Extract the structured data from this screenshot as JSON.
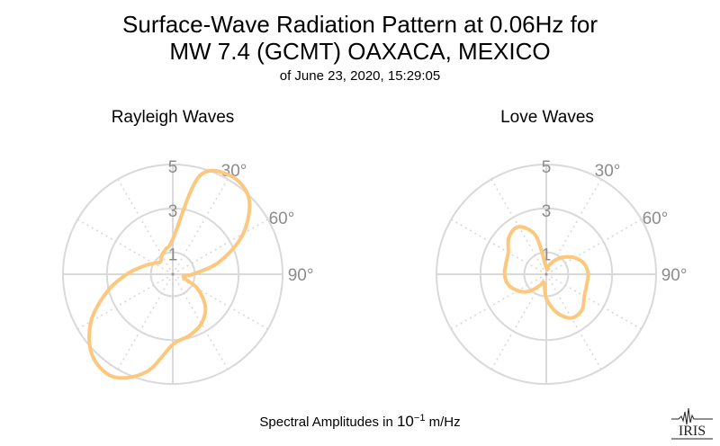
{
  "title": {
    "line1": "Surface-Wave Radiation Pattern at 0.06Hz for",
    "line2": "MW 7.4 (GCMT) OAXACA, MEXICO",
    "line3": "of June 23, 2020, 15:29:05"
  },
  "footer": {
    "prefix": "Spectral Amplitudes in",
    "base": "10",
    "exponent": "−1",
    "unit": "m/Hz"
  },
  "logo_text": "IRIS",
  "colors": {
    "curve": "#fdc77d",
    "grid": "#d9d9d9",
    "tick_label": "#8c8c8c"
  },
  "chart_data": [
    {
      "type": "polar-line",
      "title": "Rayleigh Waves",
      "radial_ticks": [
        "1",
        "3",
        "5"
      ],
      "radial_range": [
        0,
        5
      ],
      "angle_labels": [
        "30°",
        "60°",
        "90°"
      ],
      "angle_direction": "clockwise from north",
      "series": [
        {
          "azimuth_deg": [
            0,
            15,
            30,
            45,
            60,
            75,
            90,
            105,
            120,
            135,
            150,
            165,
            180,
            195,
            210,
            225,
            240,
            255,
            270,
            285,
            300,
            315,
            330,
            345
          ],
          "amplitude": [
            1.6,
            4.6,
            5.2,
            4.9,
            3.7,
            2.2,
            0.9,
            0.5,
            1.3,
            2.1,
            2.6,
            2.9,
            3.2,
            4.6,
            5.4,
            5.2,
            4.3,
            3.1,
            2.1,
            1.4,
            1.0,
            0.8,
            1.0,
            1.2
          ]
        }
      ]
    },
    {
      "type": "polar-line",
      "title": "Love Waves",
      "radial_ticks": [
        "1",
        "3",
        "5"
      ],
      "radial_range": [
        0,
        5
      ],
      "angle_labels": [
        "30°",
        "60°",
        "90°"
      ],
      "angle_direction": "clockwise from north",
      "series": [
        {
          "azimuth_deg": [
            0,
            15,
            30,
            45,
            60,
            75,
            90,
            105,
            120,
            135,
            150,
            165,
            180,
            195,
            210,
            225,
            240,
            255,
            270,
            285,
            300,
            315,
            330,
            345
          ],
          "amplitude": [
            0.3,
            0.4,
            0.7,
            1.1,
            1.5,
            1.8,
            1.9,
            1.9,
            2.0,
            2.3,
            2.3,
            1.8,
            1.1,
            0.4,
            0.6,
            1.1,
            1.5,
            1.8,
            1.9,
            1.9,
            2.0,
            2.4,
            2.5,
            1.8
          ]
        }
      ]
    }
  ]
}
